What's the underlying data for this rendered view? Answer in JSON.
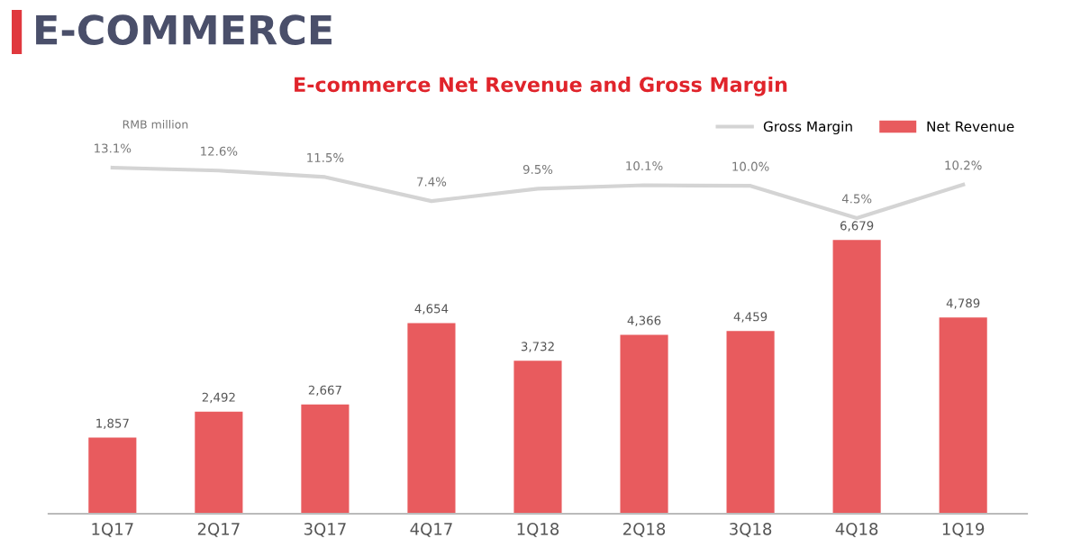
{
  "chart_data": [
    {
      "type": "bar",
      "annotations": [
        "RMB million"
      ],
      "categories": [
        "1Q17",
        "2Q17",
        "3Q17",
        "4Q17",
        "1Q18",
        "2Q18",
        "3Q18",
        "4Q18",
        "1Q19"
      ],
      "series": [
        {
          "name": "Net Revenue",
          "color": "#e85b5e",
          "values": [
            1857,
            2492,
            2667,
            4654,
            3732,
            4366,
            4459,
            6679,
            4789
          ],
          "value_labels": [
            "1,857",
            "2,492",
            "2,667",
            "4,654",
            "3,732",
            "4,366",
            "4,459",
            "6,679",
            "4,789"
          ]
        }
      ],
      "legend": "top right",
      "grid": false,
      "tick_labels": "x"
    },
    {
      "type": "line",
      "title": "E-COMMERCE",
      "subtitle": "E-commerce Net Revenue and Gross Margin",
      "categories": [
        null,
        null,
        null,
        null,
        null,
        null,
        null,
        null,
        null
      ],
      "series": [
        {
          "name": "Gross Margin",
          "color": "#d4d4d4",
          "values": [
            13.1,
            12.6,
            11.5,
            7.4,
            9.5,
            10.1,
            10.0,
            4.5,
            10.2
          ],
          "value_labels": [
            "13.1%",
            "12.6%",
            "11.5%",
            "7.4%",
            "9.5%",
            "10.1%",
            "10.0%",
            "4.5%",
            "10.2%"
          ]
        }
      ],
      "legend": "top right",
      "grid": false,
      "tick_labels": false
    }
  ]
}
